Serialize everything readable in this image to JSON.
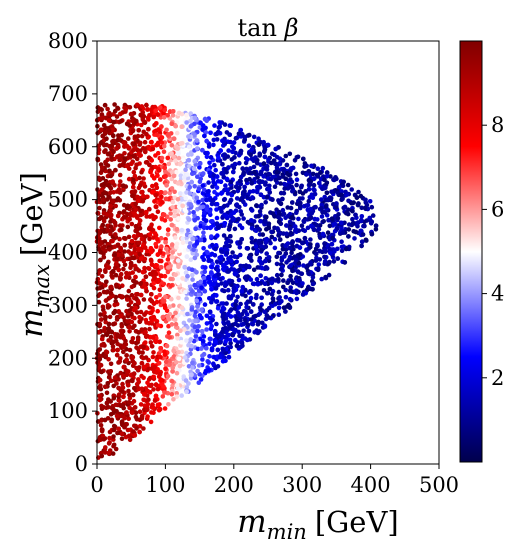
{
  "chart_data": {
    "type": "scatter",
    "title": "tan β",
    "xlabel": {
      "main": "m",
      "sub": "min",
      "unit": "[GeV]"
    },
    "ylabel": {
      "main": "m",
      "sub": "max",
      "unit": "[GeV]"
    },
    "xlim": [
      0,
      500
    ],
    "ylim": [
      0,
      800
    ],
    "xticks": [
      "0",
      "100",
      "200",
      "300",
      "400",
      "500"
    ],
    "yticks": [
      "0",
      "100",
      "200",
      "300",
      "400",
      "500",
      "600",
      "700",
      "800"
    ],
    "grid": false,
    "colorbar": {
      "label": "tan β",
      "range": [
        0,
        10
      ],
      "ticks": [
        "2",
        "4",
        "6",
        "8"
      ],
      "colormap": "seismic",
      "colors": [
        "#00004c",
        "#0000ff",
        "#ffffff",
        "#ff0000",
        "#800000"
      ]
    },
    "region": {
      "description": "dense scattered cloud of points; color encodes tan beta, high (~9) at small m_min, low (~1) at large m_min",
      "vertices_data_units": [
        [
          0,
          10
        ],
        [
          0,
          680
        ],
        [
          90,
          680
        ],
        [
          200,
          640
        ],
        [
          330,
          560
        ],
        [
          400,
          500
        ],
        [
          412,
          450
        ],
        [
          380,
          400
        ],
        [
          100,
          100
        ],
        [
          20,
          15
        ]
      ]
    }
  }
}
